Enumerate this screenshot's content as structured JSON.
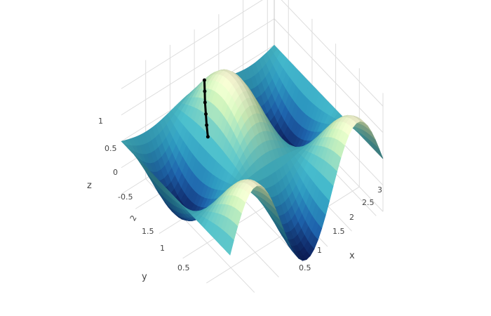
{
  "chart_data": {
    "type": "surface",
    "title": "",
    "axes": {
      "x": {
        "title": "x",
        "ticks": [
          "0.5",
          "1",
          "1.5",
          "2",
          "2.5",
          "3"
        ],
        "range": [
          0,
          3.14
        ]
      },
      "y": {
        "title": "y",
        "ticks": [
          "0.5",
          "1",
          "1.5",
          "2"
        ],
        "range": [
          0,
          2.3
        ]
      },
      "z": {
        "title": "z",
        "ticks": [
          "-0.5",
          "0",
          "0.5",
          "1"
        ],
        "range": [
          -1,
          1
        ]
      }
    },
    "surface": {
      "function": "z = sin(3x) * cos(2y) (approximate)",
      "colorscale": "YlGnBu",
      "colors_low_to_high": [
        "#0d1f5c",
        "#1d5fa5",
        "#2c93b8",
        "#45b5c4",
        "#7fcdbb",
        "#c7e9b4",
        "#ffffd9"
      ],
      "grid": true
    },
    "trajectory": {
      "color": "#000000",
      "points": [
        [
          1.05,
          1.55,
          0.18
        ],
        [
          1.15,
          1.68,
          0.22
        ],
        [
          1.25,
          1.8,
          0.26
        ],
        [
          1.35,
          1.92,
          0.31
        ],
        [
          1.45,
          2.03,
          0.36
        ],
        [
          1.55,
          2.14,
          0.41
        ]
      ]
    }
  }
}
